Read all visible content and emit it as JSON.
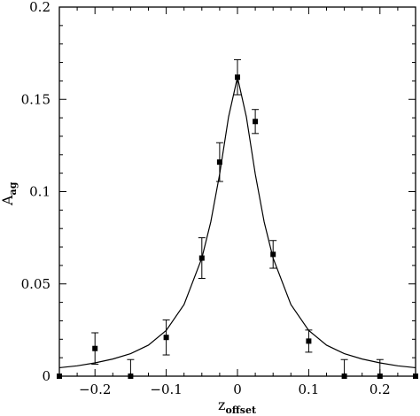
{
  "chart_data": {
    "type": "scatter",
    "title": "",
    "xlabel": {
      "main": "z",
      "subscript": "offset"
    },
    "ylabel": {
      "main": "A",
      "subscript": "ag"
    },
    "xlim": [
      -0.25,
      0.25
    ],
    "ylim": [
      0,
      0.2
    ],
    "xticks": [
      -0.2,
      -0.1,
      0,
      0.1,
      0.2
    ],
    "xtick_labels": [
      "−0.2",
      "−0.1",
      "0",
      "0.1",
      "0.2"
    ],
    "yticks": [
      0,
      0.05,
      0.1,
      0.15,
      0.2
    ],
    "ytick_labels": [
      "0",
      "0.05",
      "0.1",
      "0.15",
      "0.2"
    ],
    "grid": false,
    "series": [
      {
        "kind": "points-with-error-bars",
        "marker": "filled-square",
        "x": [
          -0.25,
          -0.2,
          -0.15,
          -0.1,
          -0.05,
          -0.025,
          0.0,
          0.025,
          0.05,
          0.1,
          0.15,
          0.2,
          0.25
        ],
        "y": [
          0.0,
          0.015,
          0.0,
          0.021,
          0.064,
          0.116,
          0.162,
          0.138,
          0.066,
          0.019,
          0.0,
          0.0,
          0.0
        ],
        "err": [
          0.0,
          0.0085,
          0.009,
          0.0095,
          0.011,
          0.0105,
          0.0095,
          0.0065,
          0.0075,
          0.006,
          0.009,
          0.009,
          0.0
        ]
      },
      {
        "kind": "fit-curve",
        "x": [
          -0.25,
          -0.225,
          -0.2,
          -0.175,
          -0.15,
          -0.125,
          -0.1,
          -0.075,
          -0.05,
          -0.0375,
          -0.025,
          -0.0125,
          0.0,
          0.0125,
          0.025,
          0.0375,
          0.05,
          0.075,
          0.1,
          0.125,
          0.15,
          0.175,
          0.2,
          0.225,
          0.25
        ],
        "y": [
          0.0046,
          0.0056,
          0.0072,
          0.0093,
          0.0122,
          0.0168,
          0.0248,
          0.0388,
          0.064,
          0.0835,
          0.1095,
          0.1405,
          0.162,
          0.1405,
          0.1095,
          0.0835,
          0.064,
          0.0388,
          0.0248,
          0.0168,
          0.0122,
          0.0093,
          0.0072,
          0.0056,
          0.0046
        ]
      }
    ]
  }
}
